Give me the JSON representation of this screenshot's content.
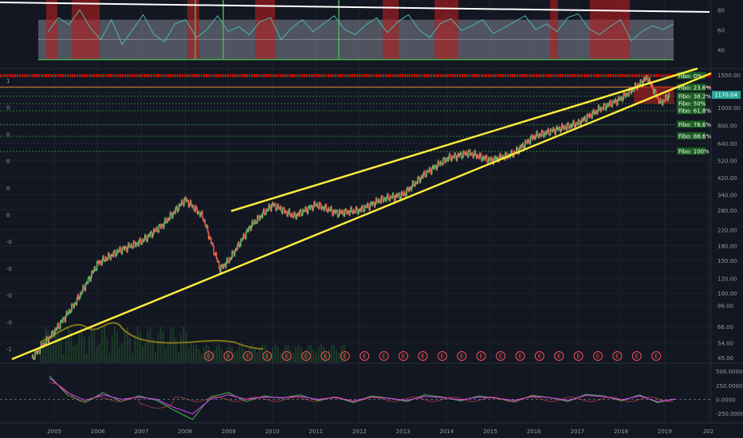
{
  "chart_data": [
    {
      "type": "line",
      "panel": "oscillator-top",
      "series": [
        {
          "values": [
            58,
            72,
            65,
            80,
            62,
            50,
            70,
            45,
            60,
            75,
            55,
            48,
            66,
            70,
            52,
            60,
            74,
            58,
            63,
            55,
            68,
            72,
            50,
            62,
            70,
            58,
            66,
            74,
            60,
            55,
            65,
            72,
            57,
            68,
            75,
            60,
            52,
            66,
            71,
            59,
            64,
            70,
            56,
            62,
            68,
            74,
            60,
            66,
            58,
            72,
            76,
            61,
            55,
            63,
            70,
            49,
            58,
            64,
            60,
            66
          ]
        }
      ],
      "yticks": [
        "80",
        "60",
        "40"
      ],
      "ylim": [
        25,
        85
      ],
      "colors": {
        "line": "#4db6ac",
        "band": "#9aa0ad",
        "zone": "#b71c1c",
        "green": "#4caf50",
        "trend": "#ffffff"
      }
    },
    {
      "type": "candlestick",
      "panel": "price-main",
      "scale": "log",
      "x_ticks": [
        "2005",
        "2006",
        "2007",
        "2008",
        "2009",
        "2010",
        "2011",
        "2012",
        "2013",
        "2014",
        "2015",
        "2016",
        "2017",
        "2018",
        "2019",
        "202"
      ],
      "right_ticks": [
        "1500.00",
        "1200.00",
        "1000.00",
        "800.00",
        "640.00",
        "520.00",
        "420.00",
        "340.00",
        "280.00",
        "220.00",
        "180.00",
        "150.00",
        "120.00",
        "100.00",
        "86.00",
        "66.00",
        "54.00",
        "45.00"
      ],
      "left_ticks": [
        "1",
        "0",
        "0",
        "0",
        "0",
        "0",
        "-0",
        "-0",
        "-0",
        "-0",
        "-1"
      ],
      "price_tag": "1170.04",
      "approx_path": [
        [
          2004.5,
          45
        ],
        [
          2005.0,
          62
        ],
        [
          2005.5,
          90
        ],
        [
          2006.0,
          145
        ],
        [
          2006.5,
          170
        ],
        [
          2007.0,
          190
        ],
        [
          2007.5,
          235
        ],
        [
          2008.0,
          320
        ],
        [
          2008.4,
          260
        ],
        [
          2008.8,
          135
        ],
        [
          2009.0,
          150
        ],
        [
          2009.5,
          230
        ],
        [
          2010.0,
          300
        ],
        [
          2010.5,
          260
        ],
        [
          2011.0,
          300
        ],
        [
          2011.5,
          270
        ],
        [
          2012.0,
          280
        ],
        [
          2012.5,
          320
        ],
        [
          2013.0,
          340
        ],
        [
          2013.5,
          440
        ],
        [
          2014.0,
          530
        ],
        [
          2014.5,
          570
        ],
        [
          2015.0,
          520
        ],
        [
          2015.5,
          560
        ],
        [
          2016.0,
          700
        ],
        [
          2016.5,
          760
        ],
        [
          2017.0,
          820
        ],
        [
          2017.5,
          980
        ],
        [
          2018.0,
          1120
        ],
        [
          2018.6,
          1450
        ],
        [
          2018.9,
          1050
        ],
        [
          2019.1,
          1170
        ]
      ],
      "fibonacci": [
        {
          "label": "Fibo:   0%",
          "price": 1480
        },
        {
          "label": "Fibo: 23.6%",
          "price": 1280
        },
        {
          "label": "Fibo: 38.2%",
          "price": 1150
        },
        {
          "label": "Fibo:   50%",
          "price": 1050
        },
        {
          "label": "Fibo: 61.8%",
          "price": 960
        },
        {
          "label": "Fibo: 78.6%",
          "price": 810
        },
        {
          "label": "Fibo: 88.6%",
          "price": 700
        },
        {
          "label": "Fibo:  100%",
          "price": 580
        }
      ],
      "earnings_marker": "E",
      "colors": {
        "up": "#66bb6a",
        "down": "#ef5350",
        "trend": "#ffeb3b",
        "fibo": "#2e7d32",
        "resistance": "#d50000"
      }
    },
    {
      "type": "line",
      "panel": "macd-bottom",
      "yticks": [
        "500.0000",
        "250.0000",
        "0.0000",
        "-250.0000"
      ],
      "series": [
        {
          "color": "#4caf50",
          "values": [
            420,
            80,
            -60,
            120,
            -40,
            60,
            -20,
            -200,
            -360,
            40,
            120,
            -40,
            60,
            20,
            80,
            -20,
            40,
            -60,
            60,
            20,
            -40,
            80,
            40,
            -30,
            60,
            20,
            -50,
            70,
            30,
            -40,
            90,
            60,
            -30,
            80,
            -60,
            10
          ]
        },
        {
          "color": "#e040fb",
          "values": [
            380,
            120,
            -20,
            80,
            0,
            40,
            0,
            -150,
            -260,
            0,
            80,
            0,
            40,
            30,
            50,
            0,
            30,
            -30,
            40,
            20,
            -20,
            50,
            30,
            -10,
            40,
            20,
            -20,
            50,
            30,
            -20,
            70,
            50,
            -10,
            60,
            -40,
            0
          ]
        }
      ]
    }
  ]
}
